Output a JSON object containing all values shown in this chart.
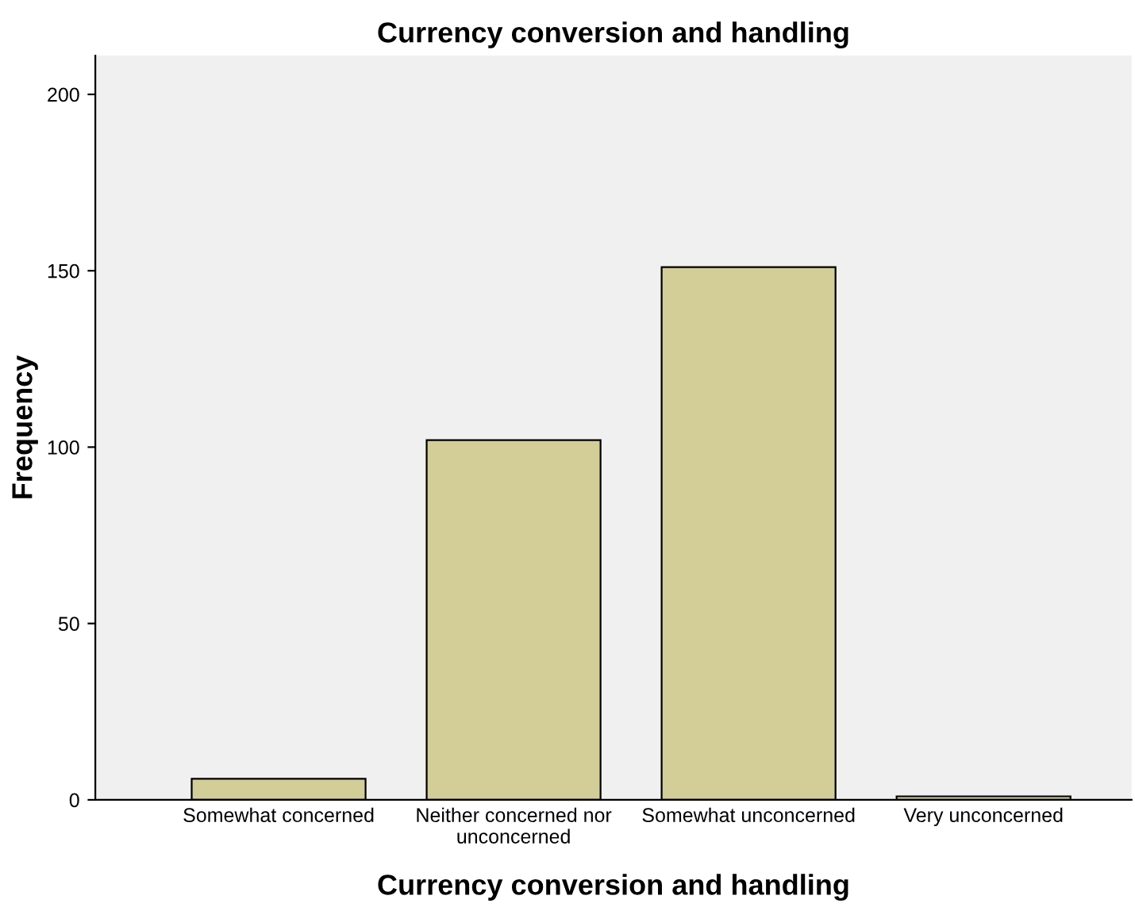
{
  "chart_data": {
    "type": "bar",
    "title": "Currency conversion and handling",
    "xlabel": "Currency conversion and handling",
    "ylabel": "Frequency",
    "categories": [
      "Somewhat concerned",
      "Neither concerned nor\nunconcerned",
      "Somewhat unconcerned",
      "Very unconcerned"
    ],
    "values": [
      6,
      102,
      151,
      1
    ],
    "color": "#d3ce97",
    "ylim": [
      0,
      211
    ],
    "yticks": [
      0,
      50,
      100,
      150,
      200
    ],
    "grid": false,
    "legend": false
  }
}
